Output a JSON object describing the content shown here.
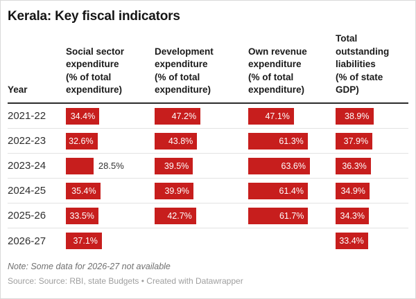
{
  "title": "Kerala: Key fiscal indicators",
  "chart_data": {
    "type": "table",
    "title": "Kerala: Key fiscal indicators",
    "row_header": "Year",
    "categories": [
      "2021-22",
      "2022-23",
      "2023-24",
      "2024-25",
      "2025-26",
      "2026-27"
    ],
    "series": [
      {
        "name": "Social sector\nexpenditure\n(% of total\nexpenditure)",
        "values": [
          34.4,
          32.6,
          28.5,
          35.4,
          33.5,
          37.1
        ],
        "labels": [
          "34.4%",
          "32.6%",
          "28.5%",
          "35.4%",
          "33.5%",
          "37.1%"
        ]
      },
      {
        "name": "Development\nexpenditure\n(% of total\nexpenditure)",
        "values": [
          47.2,
          43.8,
          39.5,
          39.9,
          42.7,
          null
        ],
        "labels": [
          "47.2%",
          "43.8%",
          "39.5%",
          "39.9%",
          "42.7%",
          null
        ]
      },
      {
        "name": "Own revenue\nexpenditure\n(% of total\nexpenditure)",
        "values": [
          47.1,
          61.3,
          63.6,
          61.4,
          61.7,
          null
        ],
        "labels": [
          "47.1%",
          "61.3%",
          "63.6%",
          "61.4%",
          "61.7%",
          null
        ]
      },
      {
        "name": "Total\noutstanding\nliabilities\n(% of state\nGDP)",
        "values": [
          38.9,
          37.9,
          36.3,
          34.9,
          34.3,
          33.4
        ],
        "labels": [
          "38.9%",
          "37.9%",
          "36.3%",
          "34.9%",
          "34.3%",
          "33.4%"
        ]
      }
    ],
    "value_range_max": 63.6,
    "bar_color": "#c71e1d",
    "missing_note_year": "2026-27"
  },
  "footer": {
    "note": "Note: Some data for 2026-27 not available",
    "source": "Source: Source: RBI, state Budgets • Created with Datawrapper"
  },
  "colors": {
    "bar": "#c71e1d",
    "bar_label_inside": "#ffffff",
    "bar_label_outside": "#333333",
    "header_rule": "#2b2b2b",
    "row_rule": "#e2e2e2",
    "title_text": "#151515",
    "note_text": "#6f6f6f",
    "source_text": "#9e9e9e"
  }
}
